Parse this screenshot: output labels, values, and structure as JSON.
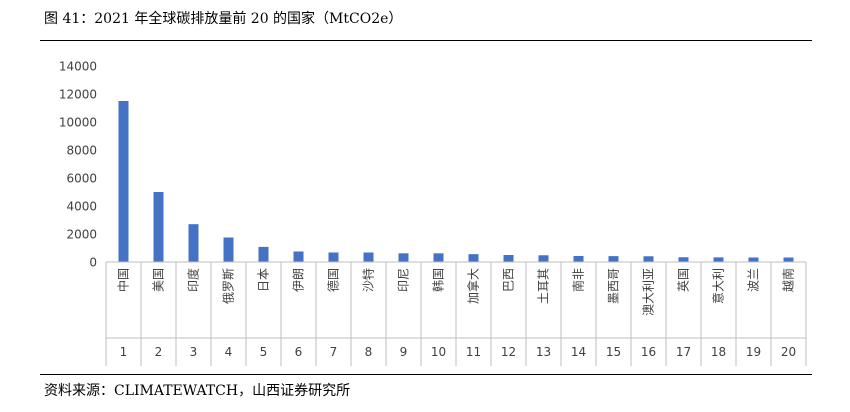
{
  "title": "图 41：2021 年全球碳排放量前 20 的国家（MtCO2e）",
  "source": "资料来源：CLIMATEWATCH，山西证券研究所",
  "chart_data": {
    "type": "bar",
    "title": "",
    "xlabel": "",
    "ylabel": "",
    "ylim": [
      0,
      14000
    ],
    "yticks": [
      0,
      2000,
      4000,
      6000,
      8000,
      10000,
      12000,
      14000
    ],
    "grid": false,
    "bar_color": "#4472C4",
    "categories": [
      "中国",
      "美国",
      "印度",
      "俄罗斯",
      "日本",
      "伊朗",
      "德国",
      "沙特",
      "印尼",
      "韩国",
      "加拿大",
      "巴西",
      "土耳其",
      "南非",
      "墨西哥",
      "澳大利亚",
      "英国",
      "意大利",
      "波兰",
      "越南"
    ],
    "ranks": [
      "1",
      "2",
      "3",
      "4",
      "5",
      "6",
      "7",
      "8",
      "9",
      "10",
      "11",
      "12",
      "13",
      "14",
      "15",
      "16",
      "17",
      "18",
      "19",
      "20"
    ],
    "values": [
      11500,
      5000,
      2700,
      1750,
      1080,
      750,
      680,
      680,
      620,
      620,
      560,
      500,
      480,
      430,
      420,
      410,
      340,
      330,
      320,
      320
    ]
  }
}
